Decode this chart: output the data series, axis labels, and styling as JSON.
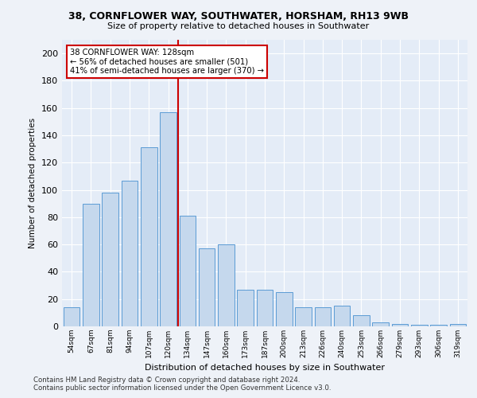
{
  "title1": "38, CORNFLOWER WAY, SOUTHWATER, HORSHAM, RH13 9WB",
  "title2": "Size of property relative to detached houses in Southwater",
  "xlabel": "Distribution of detached houses by size in Southwater",
  "ylabel": "Number of detached properties",
  "categories": [
    "54sqm",
    "67sqm",
    "81sqm",
    "94sqm",
    "107sqm",
    "120sqm",
    "134sqm",
    "147sqm",
    "160sqm",
    "173sqm",
    "187sqm",
    "200sqm",
    "213sqm",
    "226sqm",
    "240sqm",
    "253sqm",
    "266sqm",
    "279sqm",
    "293sqm",
    "306sqm",
    "319sqm"
  ],
  "values": [
    14,
    90,
    98,
    107,
    131,
    157,
    81,
    57,
    60,
    27,
    27,
    25,
    14,
    14,
    15,
    8,
    3,
    2,
    1,
    1,
    2
  ],
  "bar_color": "#c5d8ed",
  "bar_edge_color": "#5b9bd5",
  "vline_color": "#cc0000",
  "annotation_line1": "38 CORNFLOWER WAY: 128sqm",
  "annotation_line2": "← 56% of detached houses are smaller (501)",
  "annotation_line3": "41% of semi-detached houses are larger (370) →",
  "annotation_box_color": "#ffffff",
  "annotation_box_edge": "#cc0000",
  "ylim": [
    0,
    210
  ],
  "yticks": [
    0,
    20,
    40,
    60,
    80,
    100,
    120,
    140,
    160,
    180,
    200
  ],
  "footnote1": "Contains HM Land Registry data © Crown copyright and database right 2024.",
  "footnote2": "Contains public sector information licensed under the Open Government Licence v3.0.",
  "background_color": "#eef2f8",
  "plot_bg_color": "#e4ecf7"
}
